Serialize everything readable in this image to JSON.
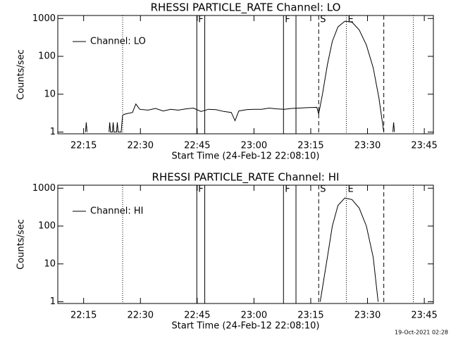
{
  "chart_data": [
    {
      "type": "line",
      "title": "RHESSI PARTICLE_RATE Channel: LO",
      "xlabel": "Start Time (24-Feb-12 22:08:10)",
      "ylabel": "Counts/sec",
      "x": [
        15.5,
        15.7,
        15.9,
        null,
        21.7,
        21.9,
        22.1,
        22.6,
        22.8,
        23.0,
        23.7,
        23.9,
        24.1,
        24.9,
        25.3,
        26.0,
        27.9,
        28.8,
        29.8,
        32,
        34,
        36,
        38,
        40,
        42,
        44,
        46,
        48,
        50,
        52,
        54,
        55,
        56,
        58,
        60,
        62,
        64,
        66,
        68,
        70,
        72,
        74,
        76.6,
        77.1,
        78.1,
        79.4,
        80.7,
        82.2,
        84.0,
        85.9,
        87.8,
        89.7,
        91.5,
        93.0,
        94.3,
        null,
        96.7,
        96.9,
        97.1
      ],
      "series": [
        {
          "name": "Channel: LO",
          "color": "#000000",
          "values": [
            1,
            1.8,
            1,
            null,
            1,
            1.8,
            1,
            1,
            1.8,
            1,
            1,
            1.8,
            1,
            1,
            2.8,
            3,
            3.3,
            5.5,
            4,
            3.8,
            4.2,
            3.6,
            4,
            3.8,
            4.1,
            4.3,
            3.5,
            4,
            3.9,
            3.5,
            3.3,
            2,
            3.6,
            3.9,
            4,
            4,
            4.3,
            4.1,
            4,
            4.2,
            4.3,
            4.4,
            4.5,
            3,
            10,
            60,
            250,
            600,
            850,
            800,
            500,
            200,
            50,
            8,
            1,
            null,
            1,
            1.8,
            1
          ]
        }
      ],
      "xlim": [
        8.17,
        107.4
      ],
      "xticks": [
        {
          "value": 15,
          "label": "22:15"
        },
        {
          "value": 30,
          "label": "22:30"
        },
        {
          "value": 45,
          "label": "22:45"
        },
        {
          "value": 60,
          "label": "23:00"
        },
        {
          "value": 75,
          "label": "23:15"
        },
        {
          "value": 90,
          "label": "23:30"
        },
        {
          "value": 105,
          "label": "23:45"
        }
      ],
      "ylim": [
        0.9,
        1200
      ],
      "yticks": [
        1,
        10,
        100,
        1000
      ],
      "log_y": true,
      "legend": "upper left",
      "vlines": [
        {
          "x": 25.3,
          "style": "dotted"
        },
        {
          "x": 44.9,
          "style": "solid"
        },
        {
          "x": 47.0,
          "style": "solid"
        },
        {
          "x": 67.8,
          "style": "solid"
        },
        {
          "x": 71.1,
          "style": "solid"
        },
        {
          "x": 77.1,
          "style": "dashed"
        },
        {
          "x": 84.4,
          "style": "dotted"
        },
        {
          "x": 94.3,
          "style": "dashed"
        },
        {
          "x": 102.1,
          "style": "dotted"
        }
      ],
      "flags": [
        {
          "x": 44.9,
          "label": "F"
        },
        {
          "x": 67.8,
          "label": "F"
        },
        {
          "x": 77.1,
          "label": "S"
        },
        {
          "x": 84.4,
          "label": "E"
        }
      ]
    },
    {
      "type": "line",
      "title": "RHESSI PARTICLE_RATE Channel: HI",
      "xlabel": "Start Time (24-Feb-12 22:08:10)",
      "ylabel": "Counts/sec",
      "x": [
        77.5,
        79.4,
        80.7,
        82.2,
        84.0,
        85.9,
        87.8,
        89.7,
        91.5,
        92.8
      ],
      "series": [
        {
          "name": "Channel: HI",
          "color": "#000000",
          "values": [
            1,
            15,
            100,
            350,
            550,
            500,
            300,
            100,
            15,
            1
          ]
        }
      ],
      "xlim": [
        8.17,
        107.4
      ],
      "xticks": [
        {
          "value": 15,
          "label": "22:15"
        },
        {
          "value": 30,
          "label": "22:30"
        },
        {
          "value": 45,
          "label": "22:45"
        },
        {
          "value": 60,
          "label": "23:00"
        },
        {
          "value": 75,
          "label": "23:15"
        },
        {
          "value": 90,
          "label": "23:30"
        },
        {
          "value": 105,
          "label": "23:45"
        }
      ],
      "ylim": [
        0.9,
        1200
      ],
      "yticks": [
        1,
        10,
        100,
        1000
      ],
      "log_y": true,
      "legend": "upper left",
      "vlines": [
        {
          "x": 25.3,
          "style": "dotted"
        },
        {
          "x": 44.9,
          "style": "solid"
        },
        {
          "x": 47.0,
          "style": "solid"
        },
        {
          "x": 67.8,
          "style": "solid"
        },
        {
          "x": 71.1,
          "style": "solid"
        },
        {
          "x": 77.1,
          "style": "dashed"
        },
        {
          "x": 84.4,
          "style": "dotted"
        },
        {
          "x": 94.3,
          "style": "dashed"
        },
        {
          "x": 102.1,
          "style": "dotted"
        }
      ],
      "flags": [
        {
          "x": 44.9,
          "label": "F"
        },
        {
          "x": 67.8,
          "label": "F"
        },
        {
          "x": 77.1,
          "label": "S"
        },
        {
          "x": 84.4,
          "label": "E"
        }
      ]
    }
  ],
  "footer": "19-Oct-2021 02:28"
}
